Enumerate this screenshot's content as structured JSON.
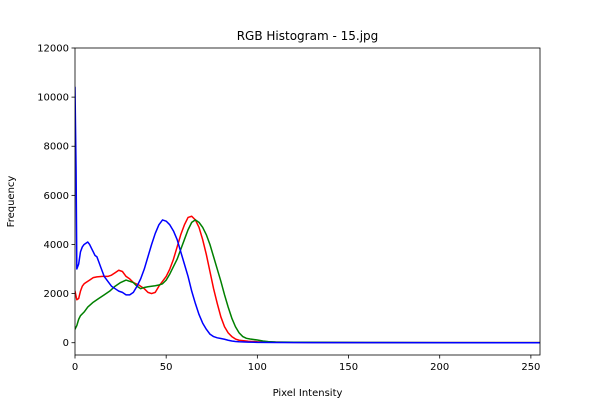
{
  "chart_data": {
    "type": "line",
    "title": "RGB Histogram - 15.jpg",
    "xlabel": "Pixel Intensity",
    "ylabel": "Frequency",
    "xlim": [
      0,
      255
    ],
    "ylim": [
      -500,
      12000
    ],
    "x_ticks": [
      0,
      50,
      100,
      150,
      200,
      250
    ],
    "y_ticks": [
      0,
      2000,
      4000,
      6000,
      8000,
      10000,
      12000
    ],
    "grid": false,
    "legend": "none",
    "series": [
      {
        "color": "#ff0000",
        "points": [
          [
            0,
            2100
          ],
          [
            1,
            1750
          ],
          [
            2,
            1800
          ],
          [
            3,
            2100
          ],
          [
            4,
            2300
          ],
          [
            5,
            2400
          ],
          [
            6,
            2450
          ],
          [
            8,
            2550
          ],
          [
            10,
            2650
          ],
          [
            12,
            2680
          ],
          [
            15,
            2700
          ],
          [
            18,
            2700
          ],
          [
            20,
            2750
          ],
          [
            22,
            2850
          ],
          [
            24,
            2950
          ],
          [
            26,
            2900
          ],
          [
            28,
            2700
          ],
          [
            30,
            2600
          ],
          [
            32,
            2450
          ],
          [
            35,
            2350
          ],
          [
            38,
            2200
          ],
          [
            40,
            2050
          ],
          [
            42,
            2000
          ],
          [
            44,
            2050
          ],
          [
            46,
            2300
          ],
          [
            48,
            2500
          ],
          [
            50,
            2700
          ],
          [
            52,
            3000
          ],
          [
            54,
            3400
          ],
          [
            56,
            3900
          ],
          [
            58,
            4400
          ],
          [
            60,
            4800
          ],
          [
            62,
            5100
          ],
          [
            64,
            5150
          ],
          [
            66,
            5000
          ],
          [
            68,
            4700
          ],
          [
            70,
            4200
          ],
          [
            72,
            3600
          ],
          [
            74,
            2900
          ],
          [
            76,
            2200
          ],
          [
            78,
            1600
          ],
          [
            80,
            1050
          ],
          [
            82,
            650
          ],
          [
            84,
            400
          ],
          [
            86,
            250
          ],
          [
            88,
            150
          ],
          [
            90,
            100
          ],
          [
            95,
            60
          ],
          [
            100,
            40
          ],
          [
            110,
            25
          ],
          [
            120,
            15
          ],
          [
            140,
            8
          ],
          [
            160,
            5
          ],
          [
            200,
            3
          ],
          [
            255,
            2
          ]
        ]
      },
      {
        "color": "#008000",
        "points": [
          [
            0,
            550
          ],
          [
            1,
            700
          ],
          [
            2,
            950
          ],
          [
            3,
            1100
          ],
          [
            5,
            1250
          ],
          [
            7,
            1450
          ],
          [
            10,
            1650
          ],
          [
            13,
            1800
          ],
          [
            16,
            1950
          ],
          [
            19,
            2100
          ],
          [
            22,
            2300
          ],
          [
            25,
            2450
          ],
          [
            28,
            2550
          ],
          [
            30,
            2500
          ],
          [
            32,
            2450
          ],
          [
            34,
            2300
          ],
          [
            36,
            2200
          ],
          [
            38,
            2250
          ],
          [
            40,
            2280
          ],
          [
            42,
            2300
          ],
          [
            44,
            2320
          ],
          [
            46,
            2350
          ],
          [
            48,
            2400
          ],
          [
            50,
            2550
          ],
          [
            52,
            2800
          ],
          [
            54,
            3100
          ],
          [
            56,
            3400
          ],
          [
            58,
            3800
          ],
          [
            60,
            4200
          ],
          [
            62,
            4600
          ],
          [
            64,
            4900
          ],
          [
            66,
            5000
          ],
          [
            68,
            4900
          ],
          [
            70,
            4700
          ],
          [
            72,
            4400
          ],
          [
            74,
            4000
          ],
          [
            76,
            3500
          ],
          [
            78,
            3000
          ],
          [
            80,
            2500
          ],
          [
            82,
            1950
          ],
          [
            84,
            1450
          ],
          [
            86,
            1000
          ],
          [
            88,
            650
          ],
          [
            90,
            400
          ],
          [
            92,
            250
          ],
          [
            94,
            180
          ],
          [
            96,
            150
          ],
          [
            98,
            130
          ],
          [
            100,
            110
          ],
          [
            103,
            70
          ],
          [
            106,
            45
          ],
          [
            110,
            30
          ],
          [
            120,
            20
          ],
          [
            140,
            12
          ],
          [
            160,
            8
          ],
          [
            200,
            5
          ],
          [
            255,
            3
          ]
        ]
      },
      {
        "color": "#0000ff",
        "points": [
          [
            0,
            10400
          ],
          [
            0.6,
            7000
          ],
          [
            1,
            3000
          ],
          [
            2,
            3200
          ],
          [
            3,
            3700
          ],
          [
            4,
            3900
          ],
          [
            5,
            4000
          ],
          [
            6,
            4050
          ],
          [
            7,
            4100
          ],
          [
            8,
            4000
          ],
          [
            9,
            3850
          ],
          [
            10,
            3700
          ],
          [
            11,
            3550
          ],
          [
            12,
            3500
          ],
          [
            13,
            3300
          ],
          [
            14,
            3100
          ],
          [
            15,
            2900
          ],
          [
            16,
            2700
          ],
          [
            18,
            2500
          ],
          [
            20,
            2300
          ],
          [
            22,
            2200
          ],
          [
            24,
            2100
          ],
          [
            26,
            2050
          ],
          [
            28,
            1950
          ],
          [
            30,
            1950
          ],
          [
            32,
            2050
          ],
          [
            34,
            2300
          ],
          [
            36,
            2600
          ],
          [
            38,
            3000
          ],
          [
            40,
            3500
          ],
          [
            42,
            4000
          ],
          [
            44,
            4450
          ],
          [
            46,
            4800
          ],
          [
            48,
            5000
          ],
          [
            50,
            4950
          ],
          [
            52,
            4800
          ],
          [
            54,
            4550
          ],
          [
            56,
            4200
          ],
          [
            58,
            3700
          ],
          [
            60,
            3200
          ],
          [
            62,
            2700
          ],
          [
            64,
            2100
          ],
          [
            66,
            1600
          ],
          [
            68,
            1150
          ],
          [
            70,
            800
          ],
          [
            72,
            550
          ],
          [
            74,
            350
          ],
          [
            76,
            250
          ],
          [
            78,
            200
          ],
          [
            80,
            170
          ],
          [
            82,
            140
          ],
          [
            84,
            100
          ],
          [
            86,
            70
          ],
          [
            88,
            50
          ],
          [
            90,
            40
          ],
          [
            95,
            25
          ],
          [
            100,
            15
          ],
          [
            110,
            8
          ],
          [
            130,
            5
          ],
          [
            160,
            3
          ],
          [
            255,
            1
          ]
        ]
      }
    ]
  }
}
